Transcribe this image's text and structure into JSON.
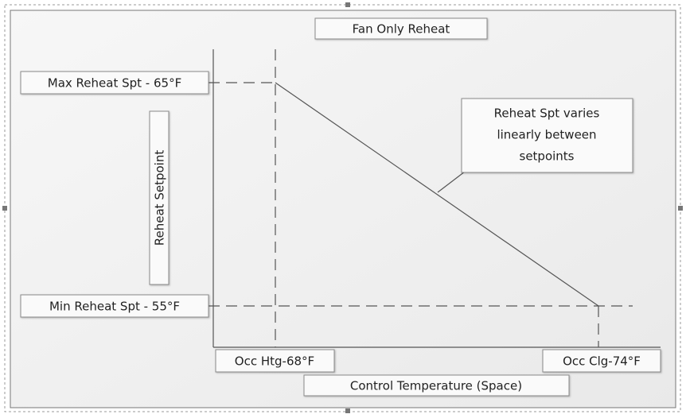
{
  "title": "Fan Only Reheat",
  "y_axis_label": "Reheat Setpoint",
  "x_axis_label": "Control Temperature (Space)",
  "max_setpoint_label": "Max Reheat Spt - 65°F",
  "min_setpoint_label": "Min Reheat Spt - 55°F",
  "heating_label": "Occ Htg-68°F",
  "cooling_label": "Occ Clg-74°F",
  "callout_lines": [
    "Reheat Spt varies",
    "linearly between",
    "setpoints"
  ]
}
